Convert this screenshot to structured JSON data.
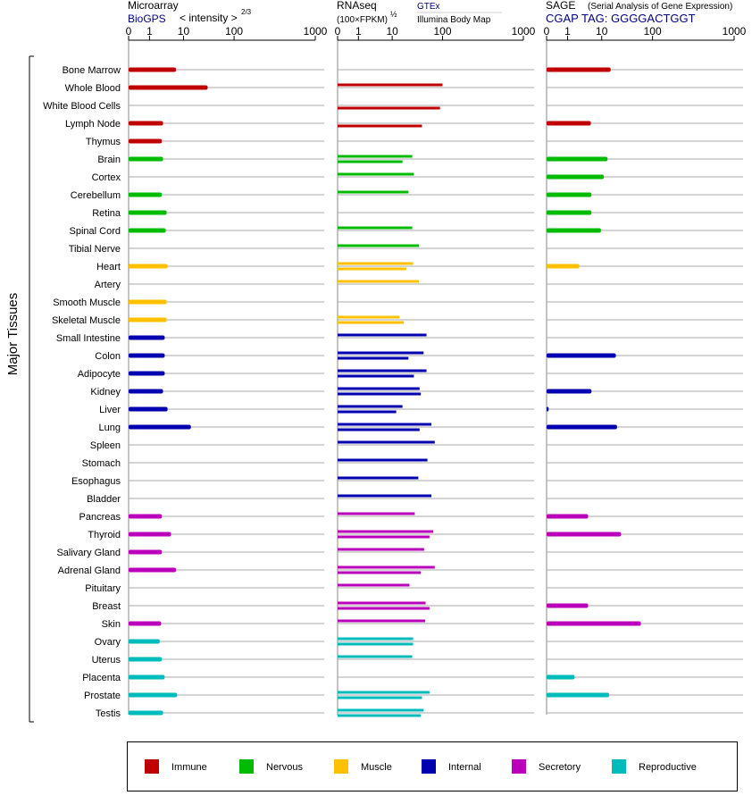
{
  "chart_data": {
    "type": "bar",
    "y_label": "Major Tissues",
    "groups": [
      {
        "name": "Immune",
        "color": "#c00000",
        "tissues": [
          "Bone Marrow",
          "Whole Blood",
          "White Blood Cells",
          "Lymph Node",
          "Thymus"
        ]
      },
      {
        "name": "Nervous",
        "color": "#00bb00",
        "tissues": [
          "Brain",
          "Cortex",
          "Cerebellum",
          "Retina",
          "Spinal Cord",
          "Tibial Nerve"
        ]
      },
      {
        "name": "Muscle",
        "color": "#ffc000",
        "tissues": [
          "Heart",
          "Artery",
          "Smooth Muscle",
          "Skeletal Muscle"
        ]
      },
      {
        "name": "Internal",
        "color": "#0000b0",
        "tissues": [
          "Small Intestine",
          "Colon",
          "Adipocyte",
          "Kidney",
          "Liver",
          "Lung",
          "Spleen",
          "Stomach",
          "Esophagus",
          "Bladder"
        ]
      },
      {
        "name": "Secretory",
        "color": "#bb00bb",
        "tissues": [
          "Pancreas",
          "Thyroid",
          "Salivary Gland",
          "Adrenal Gland",
          "Pituitary",
          "Breast",
          "Skin"
        ]
      },
      {
        "name": "Reproductive",
        "color": "#00bbbb",
        "tissues": [
          "Ovary",
          "Uterus",
          "Placenta",
          "Prostate",
          "Testis"
        ]
      }
    ],
    "panels": [
      {
        "title": "Microarray",
        "source": "BioGPS",
        "scale_label": "< intensity >",
        "exponent": "2/3",
        "xlim": [
          0,
          1000
        ],
        "xticks": [
          0,
          1,
          10,
          100,
          1000
        ],
        "series": [
          {
            "values": [
              6,
              30,
              null,
              2.5,
              2.3,
              2.5,
              null,
              2.3,
              3.2,
              3,
              null,
              3.4,
              null,
              3.2,
              3.2,
              2.8,
              2.8,
              2.8,
              2.5,
              3.4,
              14,
              null,
              null,
              null,
              null,
              2.3,
              4.3,
              2.3,
              6,
              null,
              null,
              2.2,
              2,
              2.3,
              2.8,
              6.5,
              2.5
            ]
          }
        ]
      },
      {
        "title": "RNAseq",
        "scale_label": "(100×FPKM)",
        "exponent": "½",
        "xlim": [
          0,
          1000
        ],
        "xticks": [
          0,
          1,
          10,
          100,
          1000
        ],
        "series": [
          {
            "name": "GTEx",
            "values": [
              null,
              100,
              null,
              null,
              null,
              25,
              27,
              21,
              null,
              25,
              34,
              26,
              34,
              null,
              14,
              48,
              42,
              48,
              35,
              16,
              60,
              70,
              50,
              33,
              60,
              28,
              65,
              43,
              70,
              22,
              46,
              45,
              26,
              25,
              null,
              55,
              42
            ]
          },
          {
            "name": "Illumina Body Map",
            "values": [
              null,
              null,
              89,
              39,
              null,
              16,
              null,
              null,
              null,
              null,
              null,
              19,
              null,
              null,
              17,
              null,
              21,
              27,
              37,
              12,
              35,
              null,
              null,
              null,
              null,
              null,
              55,
              null,
              37,
              null,
              55,
              null,
              26,
              null,
              null,
              39,
              37
            ]
          }
        ]
      },
      {
        "title": "SAGE",
        "subtitle": "(Serial Analysis of Gene Expression)",
        "source": "CGAP TAG: GGGGACTGGT",
        "xlim": [
          0,
          1000
        ],
        "xticks": [
          0,
          1,
          10,
          100,
          1000
        ],
        "series": [
          {
            "values": [
              15,
              null,
              null,
              4.8,
              null,
              13,
              11,
              5,
              5,
              9.5,
              null,
              2.2,
              null,
              null,
              null,
              null,
              19,
              null,
              5,
              0.1,
              20,
              null,
              null,
              null,
              null,
              4,
              24,
              null,
              null,
              null,
              4,
              59,
              null,
              null,
              1.6,
              14,
              null
            ]
          }
        ]
      }
    ]
  }
}
